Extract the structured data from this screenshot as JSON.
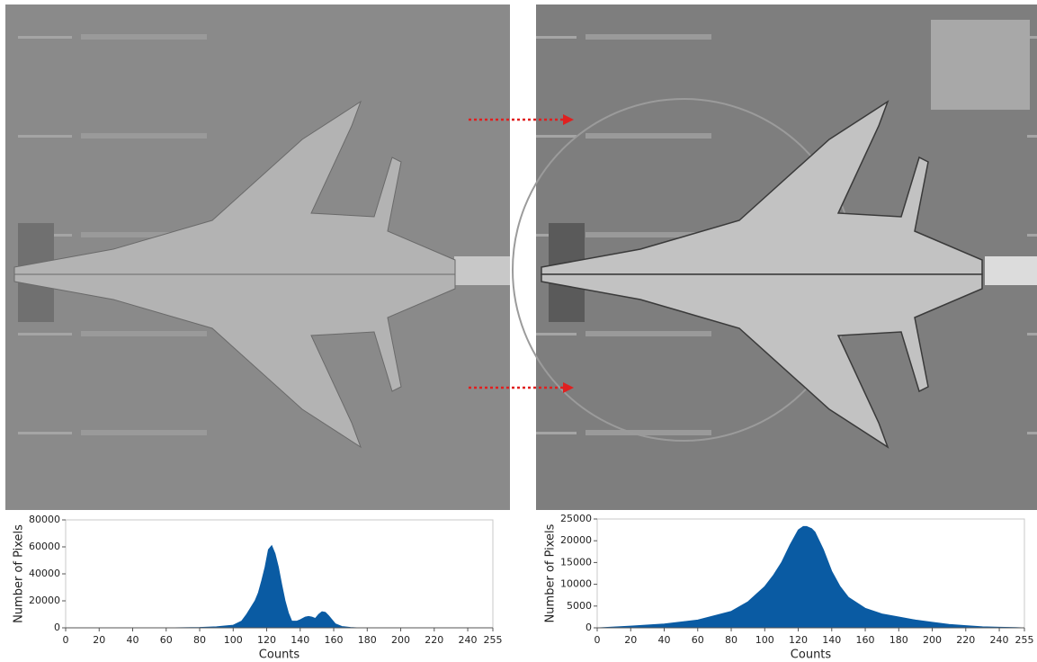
{
  "chart_data": [
    {
      "type": "area",
      "color": "#0a5ba3",
      "ylabel": "Number of Pixels",
      "xlabel": "Counts",
      "x": [
        0,
        20,
        40,
        60,
        80,
        90,
        100,
        105,
        108,
        111,
        113,
        115,
        117,
        119,
        121,
        123,
        125,
        127,
        129,
        131,
        133,
        135,
        138,
        140,
        143,
        145,
        147,
        149,
        151,
        153,
        155,
        157,
        159,
        161,
        165,
        170,
        175,
        200,
        255
      ],
      "values": [
        0,
        0,
        0,
        0,
        300,
        800,
        2000,
        5000,
        10000,
        16000,
        20000,
        26000,
        35000,
        45000,
        58000,
        61000,
        55000,
        45000,
        32000,
        20000,
        11000,
        5000,
        5000,
        6000,
        8000,
        8500,
        8000,
        7000,
        10000,
        12000,
        11500,
        9000,
        6000,
        3000,
        1000,
        300,
        0,
        0,
        0
      ],
      "xlim": [
        0,
        255
      ],
      "ylim": [
        0,
        80000
      ],
      "xticks": [
        0,
        20,
        40,
        60,
        80,
        100,
        120,
        140,
        160,
        180,
        200,
        220,
        240,
        255
      ],
      "yticks": [
        0,
        20000,
        40000,
        60000,
        80000
      ]
    },
    {
      "type": "area",
      "color": "#0a5ba3",
      "ylabel": "Number of Pixels",
      "xlabel": "Counts",
      "x": [
        0,
        10,
        20,
        40,
        60,
        80,
        90,
        100,
        105,
        110,
        115,
        120,
        123,
        125,
        128,
        130,
        135,
        140,
        145,
        150,
        160,
        170,
        180,
        190,
        200,
        210,
        220,
        230,
        240,
        250,
        255
      ],
      "values": [
        0,
        200,
        400,
        900,
        1800,
        3800,
        6000,
        9500,
        12000,
        15000,
        19000,
        22500,
        23300,
        23300,
        22800,
        22000,
        18000,
        13000,
        9500,
        7000,
        4500,
        3200,
        2500,
        1800,
        1300,
        800,
        500,
        250,
        150,
        80,
        0
      ],
      "xlim": [
        0,
        255
      ],
      "ylim": [
        0,
        25000
      ],
      "xticks": [
        0,
        20,
        40,
        60,
        80,
        100,
        120,
        140,
        160,
        180,
        200,
        220,
        240,
        255
      ],
      "yticks": [
        0,
        5000,
        10000,
        15000,
        20000,
        25000
      ]
    }
  ]
}
